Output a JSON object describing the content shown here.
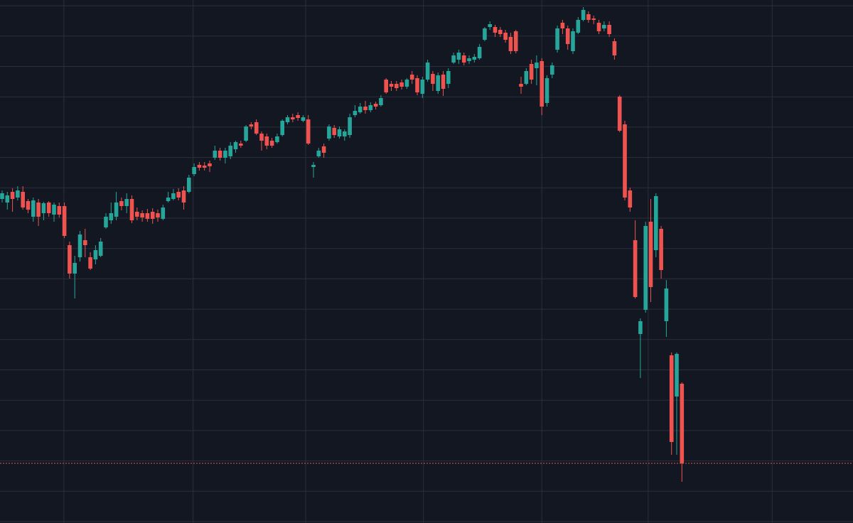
{
  "chart_data": {
    "type": "candlestick",
    "up_color": "#26a69a",
    "down_color": "#ef5350",
    "open": [
      456,
      451,
      466,
      458,
      466,
      453,
      431,
      451,
      436,
      451,
      434,
      446,
      446,
      391,
      351,
      374,
      398,
      374,
      371,
      376,
      416,
      426,
      431,
      453,
      446,
      456,
      438,
      436,
      436,
      438,
      436,
      428,
      453,
      456,
      466,
      468,
      466,
      491,
      504,
      503,
      506,
      514,
      524,
      514,
      516,
      526,
      534,
      538,
      561,
      564,
      548,
      544,
      538,
      536,
      546,
      564,
      571,
      574,
      566,
      568,
      501,
      516,
      530,
      541,
      556,
      544,
      544,
      546,
      574,
      578,
      586,
      581,
      590,
      588,
      624,
      618,
      618,
      620,
      614,
      631,
      626,
      604,
      624,
      632,
      608,
      631,
      618,
      648,
      652,
      658,
      650,
      652,
      654,
      680,
      698,
      698,
      694,
      690,
      684,
      692,
      618,
      618,
      646,
      640,
      650,
      591,
      631,
      666,
      704,
      696,
      664,
      690,
      708,
      716,
      710,
      704,
      696,
      701,
      678,
      600,
      561,
      468,
      398,
      266,
      300,
      424,
      384,
      414,
      284,
      236,
      178,
      196
    ],
    "high": [
      468,
      466,
      471,
      474,
      474,
      456,
      458,
      456,
      452,
      453,
      451,
      451,
      451,
      396,
      376,
      411,
      414,
      381,
      391,
      401,
      436,
      451,
      466,
      458,
      464,
      461,
      444,
      440,
      442,
      443,
      441,
      448,
      466,
      470,
      471,
      474,
      490,
      506,
      508,
      508,
      510,
      531,
      528,
      528,
      536,
      538,
      538,
      560,
      564,
      568,
      551,
      548,
      542,
      548,
      568,
      574,
      576,
      578,
      574,
      574,
      508,
      528,
      534,
      561,
      560,
      558,
      554,
      576,
      588,
      591,
      594,
      592,
      593,
      602,
      626,
      622,
      622,
      624,
      626,
      636,
      630,
      628,
      652,
      636,
      634,
      636,
      640,
      662,
      666,
      662,
      658,
      660,
      674,
      698,
      706,
      701,
      698,
      694,
      690,
      694,
      628,
      640,
      652,
      658,
      654,
      630,
      648,
      700,
      708,
      700,
      696,
      712,
      726,
      720,
      714,
      708,
      706,
      706,
      682,
      602,
      566,
      472,
      426,
      288,
      424,
      456,
      464,
      418,
      342,
      240,
      240,
      198
    ],
    "low": [
      451,
      441,
      438,
      454,
      441,
      436,
      424,
      418,
      426,
      431,
      424,
      430,
      401,
      344,
      316,
      368,
      374,
      356,
      364,
      374,
      414,
      421,
      426,
      440,
      436,
      422,
      426,
      424,
      424,
      421,
      424,
      426,
      451,
      454,
      454,
      441,
      464,
      488,
      496,
      496,
      494,
      511,
      510,
      506,
      512,
      521,
      528,
      536,
      554,
      546,
      524,
      526,
      528,
      534,
      544,
      561,
      564,
      566,
      564,
      532,
      486,
      514,
      514,
      538,
      542,
      541,
      538,
      542,
      571,
      576,
      576,
      578,
      582,
      586,
      604,
      608,
      608,
      610,
      611,
      618,
      602,
      598,
      621,
      608,
      604,
      601,
      612,
      646,
      646,
      644,
      646,
      648,
      652,
      678,
      694,
      684,
      684,
      676,
      660,
      661,
      604,
      616,
      618,
      616,
      574,
      586,
      626,
      662,
      688,
      666,
      660,
      688,
      706,
      704,
      702,
      688,
      692,
      684,
      652,
      550,
      454,
      438,
      316,
      204,
      296,
      311,
      374,
      344,
      262,
      96,
      96,
      58
    ],
    "close": [
      464,
      461,
      456,
      468,
      444,
      441,
      454,
      431,
      450,
      436,
      448,
      434,
      404,
      351,
      366,
      406,
      391,
      358,
      384,
      396,
      431,
      436,
      451,
      446,
      456,
      426,
      431,
      430,
      428,
      428,
      430,
      444,
      458,
      464,
      458,
      451,
      486,
      501,
      500,
      500,
      502,
      524,
      514,
      524,
      531,
      536,
      531,
      558,
      558,
      548,
      538,
      531,
      531,
      544,
      566,
      571,
      568,
      570,
      571,
      534,
      504,
      524,
      521,
      558,
      546,
      554,
      551,
      571,
      580,
      586,
      581,
      588,
      586,
      598,
      606,
      614,
      612,
      614,
      624,
      624,
      606,
      624,
      648,
      618,
      630,
      611,
      636,
      658,
      662,
      648,
      654,
      656,
      670,
      696,
      702,
      690,
      688,
      680,
      664,
      664,
      614,
      636,
      624,
      648,
      586,
      626,
      644,
      696,
      696,
      674,
      692,
      708,
      722,
      708,
      708,
      692,
      701,
      688,
      658,
      552,
      458,
      444,
      318,
      284,
      418,
      332,
      460,
      356,
      330,
      114,
      238,
      84
    ],
    "ylim": [
      0,
      736
    ],
    "yticks": [
      2,
      44.7,
      87.4,
      130.1,
      172.8,
      215.5,
      258.2,
      300.9,
      343.6,
      386.3,
      429,
      471.7,
      514.4,
      557.1,
      599.8,
      642.5,
      685.2,
      727.9
    ],
    "xlim": [
      -0.41,
      163.97
    ],
    "xticks": [
      11.9,
      36.8,
      58.5,
      81.2,
      104,
      124.5,
      148.4
    ],
    "grid": true,
    "grid_color": "#2b2f3a",
    "background": "#131722"
  }
}
